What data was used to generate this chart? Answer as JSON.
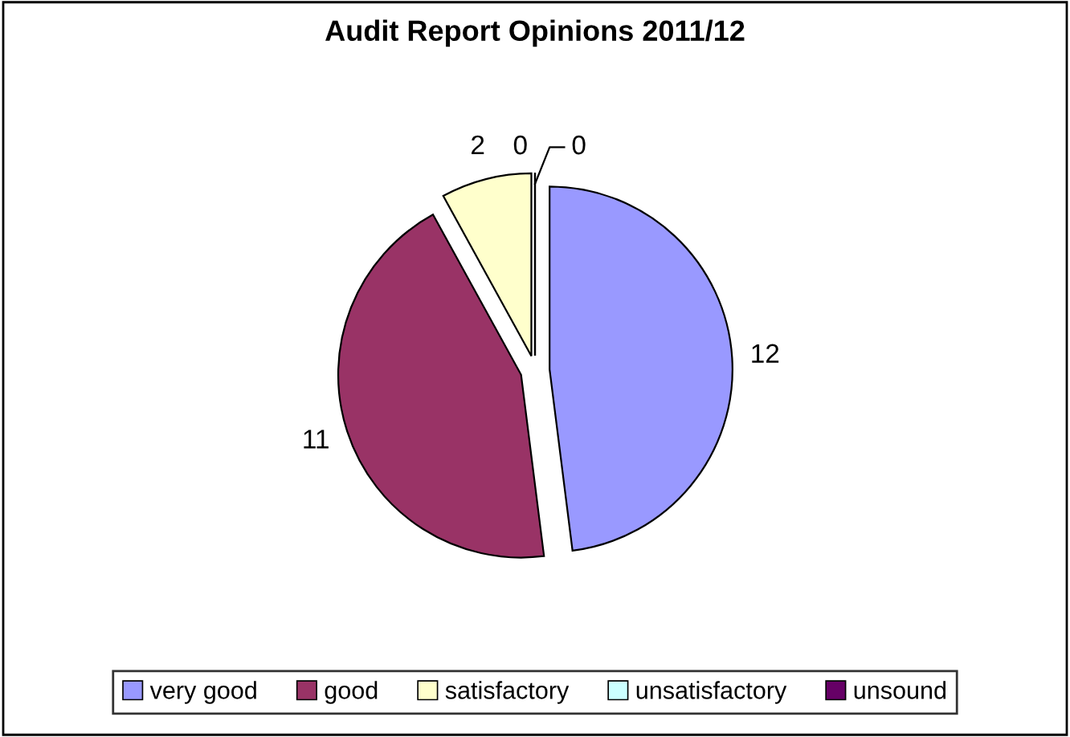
{
  "chart_data": {
    "type": "pie",
    "title": "Audit Report Opinions 2011/12",
    "categories": [
      "very good",
      "good",
      "satisfactory",
      "unsatisfactory",
      "unsound"
    ],
    "values": [
      12,
      11,
      2,
      0,
      0
    ],
    "colors": [
      "#9999ff",
      "#993366",
      "#ffffcc",
      "#ccffff",
      "#660066"
    ],
    "value_labels": [
      "12",
      "11",
      "2",
      "0",
      "0"
    ],
    "legend": "bottom"
  }
}
